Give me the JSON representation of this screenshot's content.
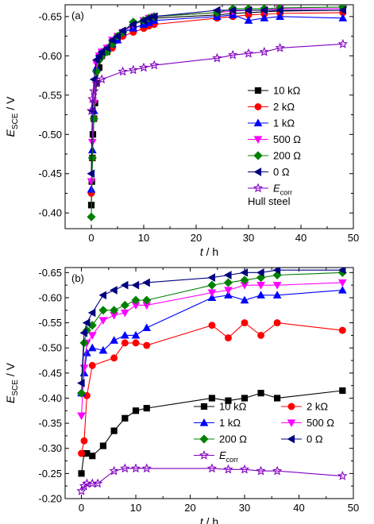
{
  "chart_data": [
    {
      "type": "line",
      "panel_label": "(a)",
      "note": "Hull steel",
      "xlabel_italic": "t",
      "xlabel_unit": " / h",
      "ylabel_main": "E",
      "ylabel_sub": "SCE",
      "ylabel_unit": " / V",
      "xlim": [
        -5,
        50
      ],
      "ylim": [
        -0.38,
        -0.665
      ],
      "xticks": [
        0,
        10,
        20,
        30,
        40,
        50
      ],
      "yticks": [
        -0.4,
        -0.45,
        -0.5,
        -0.55,
        -0.6,
        -0.65
      ],
      "xtick_labels": [
        "0",
        "10",
        "20",
        "30",
        "40",
        "50"
      ],
      "ytick_labels": [
        "-0.40",
        "-0.45",
        "-0.50",
        "-0.55",
        "-0.60",
        "-0.65"
      ],
      "legend_position": "center-right",
      "legend_columns": 1,
      "series": [
        {
          "name": "10 kΩ",
          "marker": "square",
          "color": "#000000",
          "filled": true,
          "x": [
            0,
            0.1,
            0.2,
            0.3,
            0.5,
            0.7,
            1,
            1.5,
            2,
            3,
            4,
            5,
            6,
            8,
            10,
            11,
            12,
            24,
            27,
            30,
            33,
            36,
            48
          ],
          "y": [
            -0.41,
            -0.44,
            -0.47,
            -0.5,
            -0.52,
            -0.54,
            -0.565,
            -0.585,
            -0.6,
            -0.605,
            -0.615,
            -0.625,
            -0.63,
            -0.635,
            -0.64,
            -0.645,
            -0.648,
            -0.652,
            -0.654,
            -0.655,
            -0.656,
            -0.657,
            -0.658
          ]
        },
        {
          "name": "2 kΩ",
          "marker": "circle",
          "color": "#ff0000",
          "filled": true,
          "x": [
            0,
            0.2,
            0.5,
            1,
            1.5,
            2,
            3,
            4,
            5,
            6,
            8,
            10,
            11,
            12,
            24,
            27,
            30,
            33,
            36,
            48
          ],
          "y": [
            -0.425,
            -0.47,
            -0.52,
            -0.58,
            -0.595,
            -0.6,
            -0.605,
            -0.61,
            -0.62,
            -0.625,
            -0.63,
            -0.635,
            -0.638,
            -0.64,
            -0.648,
            -0.65,
            -0.652,
            -0.653,
            -0.654,
            -0.655
          ]
        },
        {
          "name": "1 kΩ",
          "marker": "triangle-up",
          "color": "#0000ff",
          "filled": true,
          "x": [
            0,
            0.2,
            0.5,
            1,
            1.5,
            2,
            3,
            4,
            5,
            6,
            8,
            10,
            11,
            12,
            24,
            27,
            30,
            33,
            36,
            48
          ],
          "y": [
            -0.43,
            -0.48,
            -0.53,
            -0.585,
            -0.6,
            -0.605,
            -0.61,
            -0.615,
            -0.62,
            -0.63,
            -0.635,
            -0.64,
            -0.642,
            -0.645,
            -0.65,
            -0.652,
            -0.645,
            -0.648,
            -0.65,
            -0.648
          ]
        },
        {
          "name": "500 Ω",
          "marker": "triangle-down",
          "color": "#ff00ff",
          "filled": true,
          "x": [
            0,
            0.2,
            0.5,
            1,
            1.5,
            2,
            3,
            4,
            5,
            6,
            8,
            10,
            11,
            12,
            24,
            27,
            30,
            33,
            36,
            48
          ],
          "y": [
            -0.44,
            -0.49,
            -0.54,
            -0.59,
            -0.6,
            -0.605,
            -0.61,
            -0.62,
            -0.625,
            -0.63,
            -0.64,
            -0.645,
            -0.648,
            -0.65,
            -0.655,
            -0.657,
            -0.658,
            -0.658,
            -0.66,
            -0.66
          ]
        },
        {
          "name": "200 Ω",
          "marker": "diamond",
          "color": "#008000",
          "filled": true,
          "x": [
            0,
            0.2,
            0.5,
            1,
            1.5,
            2,
            3,
            4,
            5,
            6,
            8,
            10,
            11,
            12,
            24,
            27,
            30,
            33,
            36,
            48
          ],
          "y": [
            -0.395,
            -0.47,
            -0.52,
            -0.58,
            -0.595,
            -0.6,
            -0.605,
            -0.615,
            -0.625,
            -0.63,
            -0.643,
            -0.645,
            -0.648,
            -0.65,
            -0.655,
            -0.66,
            -0.66,
            -0.66,
            -0.661,
            -0.662
          ]
        },
        {
          "name": "0 Ω",
          "marker": "triangle-left",
          "color": "#000080",
          "filled": true,
          "x": [
            0,
            0.2,
            0.5,
            1,
            1.5,
            2,
            3,
            4,
            5,
            6,
            8,
            10,
            11,
            12,
            24,
            27,
            30,
            33,
            36,
            48
          ],
          "y": [
            -0.45,
            -0.53,
            -0.57,
            -0.595,
            -0.6,
            -0.605,
            -0.61,
            -0.62,
            -0.625,
            -0.632,
            -0.64,
            -0.645,
            -0.648,
            -0.65,
            -0.658,
            -0.658,
            -0.658,
            -0.658,
            -0.658,
            -0.658
          ]
        },
        {
          "name": "E",
          "name_sub": "corr",
          "marker": "star",
          "color": "#8000c0",
          "filled": false,
          "x": [
            0,
            0.2,
            0.5,
            1,
            2,
            6,
            8,
            10,
            12,
            24,
            27,
            30,
            33,
            36,
            48
          ],
          "y": [
            -0.53,
            -0.545,
            -0.555,
            -0.565,
            -0.57,
            -0.58,
            -0.582,
            -0.585,
            -0.588,
            -0.597,
            -0.601,
            -0.603,
            -0.605,
            -0.61,
            -0.615
          ]
        }
      ]
    },
    {
      "type": "line",
      "panel_label": "(b)",
      "xlabel_italic": "t",
      "xlabel_unit": " / h",
      "ylabel_main": "E",
      "ylabel_sub": "SCE",
      "ylabel_unit": " / V",
      "xlim": [
        -3,
        50
      ],
      "ylim": [
        -0.2,
        -0.66
      ],
      "xticks": [
        0,
        10,
        20,
        30,
        40,
        50
      ],
      "yticks": [
        -0.2,
        -0.25,
        -0.3,
        -0.35,
        -0.4,
        -0.45,
        -0.5,
        -0.55,
        -0.6,
        -0.65
      ],
      "xtick_labels": [
        "0",
        "10",
        "20",
        "30",
        "40",
        "50"
      ],
      "ytick_labels": [
        "-0.20",
        "-0.25",
        "-0.30",
        "-0.35",
        "-0.40",
        "-0.45",
        "-0.50",
        "-0.55",
        "-0.60",
        "-0.65"
      ],
      "legend_position": "lower-right",
      "legend_columns": 2,
      "series": [
        {
          "name": "10 kΩ",
          "marker": "square",
          "color": "#000000",
          "filled": true,
          "x": [
            0,
            0.5,
            1,
            2,
            4,
            6,
            8,
            10,
            12,
            24,
            27,
            30,
            33,
            36,
            48
          ],
          "y": [
            -0.25,
            -0.29,
            -0.29,
            -0.285,
            -0.305,
            -0.335,
            -0.36,
            -0.375,
            -0.38,
            -0.4,
            -0.395,
            -0.4,
            -0.41,
            -0.4,
            -0.415
          ]
        },
        {
          "name": "2 kΩ",
          "marker": "circle",
          "color": "#ff0000",
          "filled": true,
          "x": [
            0,
            0.5,
            1,
            2,
            6,
            8,
            10,
            12,
            24,
            27,
            30,
            33,
            36,
            48
          ],
          "y": [
            -0.29,
            -0.315,
            -0.405,
            -0.465,
            -0.48,
            -0.51,
            -0.51,
            -0.505,
            -0.545,
            -0.52,
            -0.55,
            -0.525,
            -0.55,
            -0.535
          ]
        },
        {
          "name": "1 kΩ",
          "marker": "triangle-up",
          "color": "#0000ff",
          "filled": true,
          "x": [
            0,
            0.5,
            1,
            2,
            4,
            6,
            8,
            10,
            12,
            24,
            27,
            30,
            33,
            36,
            48
          ],
          "y": [
            -0.41,
            -0.45,
            -0.49,
            -0.5,
            -0.495,
            -0.515,
            -0.525,
            -0.525,
            -0.54,
            -0.6,
            -0.605,
            -0.595,
            -0.605,
            -0.605,
            -0.615
          ]
        },
        {
          "name": "500 Ω",
          "marker": "triangle-down",
          "color": "#ff00ff",
          "filled": true,
          "x": [
            0,
            0.5,
            1,
            2,
            4,
            6,
            8,
            10,
            12,
            24,
            27,
            30,
            33,
            36,
            48
          ],
          "y": [
            -0.365,
            -0.46,
            -0.51,
            -0.525,
            -0.555,
            -0.565,
            -0.57,
            -0.585,
            -0.585,
            -0.61,
            -0.615,
            -0.625,
            -0.625,
            -0.625,
            -0.63
          ]
        },
        {
          "name": "200 Ω",
          "marker": "diamond",
          "color": "#008000",
          "filled": true,
          "x": [
            0,
            0.5,
            1,
            2,
            4,
            6,
            8,
            10,
            12,
            24,
            27,
            30,
            33,
            36,
            48
          ],
          "y": [
            -0.41,
            -0.51,
            -0.535,
            -0.545,
            -0.575,
            -0.575,
            -0.585,
            -0.595,
            -0.595,
            -0.625,
            -0.63,
            -0.635,
            -0.64,
            -0.645,
            -0.65
          ]
        },
        {
          "name": "0 Ω",
          "marker": "triangle-left",
          "color": "#000080",
          "filled": true,
          "x": [
            0,
            0.5,
            1,
            2,
            4,
            6,
            8,
            10,
            12,
            24,
            27,
            30,
            33,
            36,
            48
          ],
          "y": [
            -0.43,
            -0.53,
            -0.55,
            -0.57,
            -0.605,
            -0.615,
            -0.625,
            -0.625,
            -0.63,
            -0.64,
            -0.645,
            -0.65,
            -0.65,
            -0.655,
            -0.655
          ]
        },
        {
          "name": "E",
          "name_sub": "corr",
          "marker": "star",
          "color": "#8000c0",
          "filled": false,
          "x": [
            0,
            0.5,
            1,
            2,
            3,
            6,
            8,
            10,
            12,
            24,
            27,
            30,
            33,
            36,
            48
          ],
          "y": [
            -0.215,
            -0.225,
            -0.23,
            -0.23,
            -0.23,
            -0.255,
            -0.26,
            -0.26,
            -0.26,
            -0.26,
            -0.258,
            -0.258,
            -0.255,
            -0.255,
            -0.245
          ]
        }
      ]
    }
  ]
}
